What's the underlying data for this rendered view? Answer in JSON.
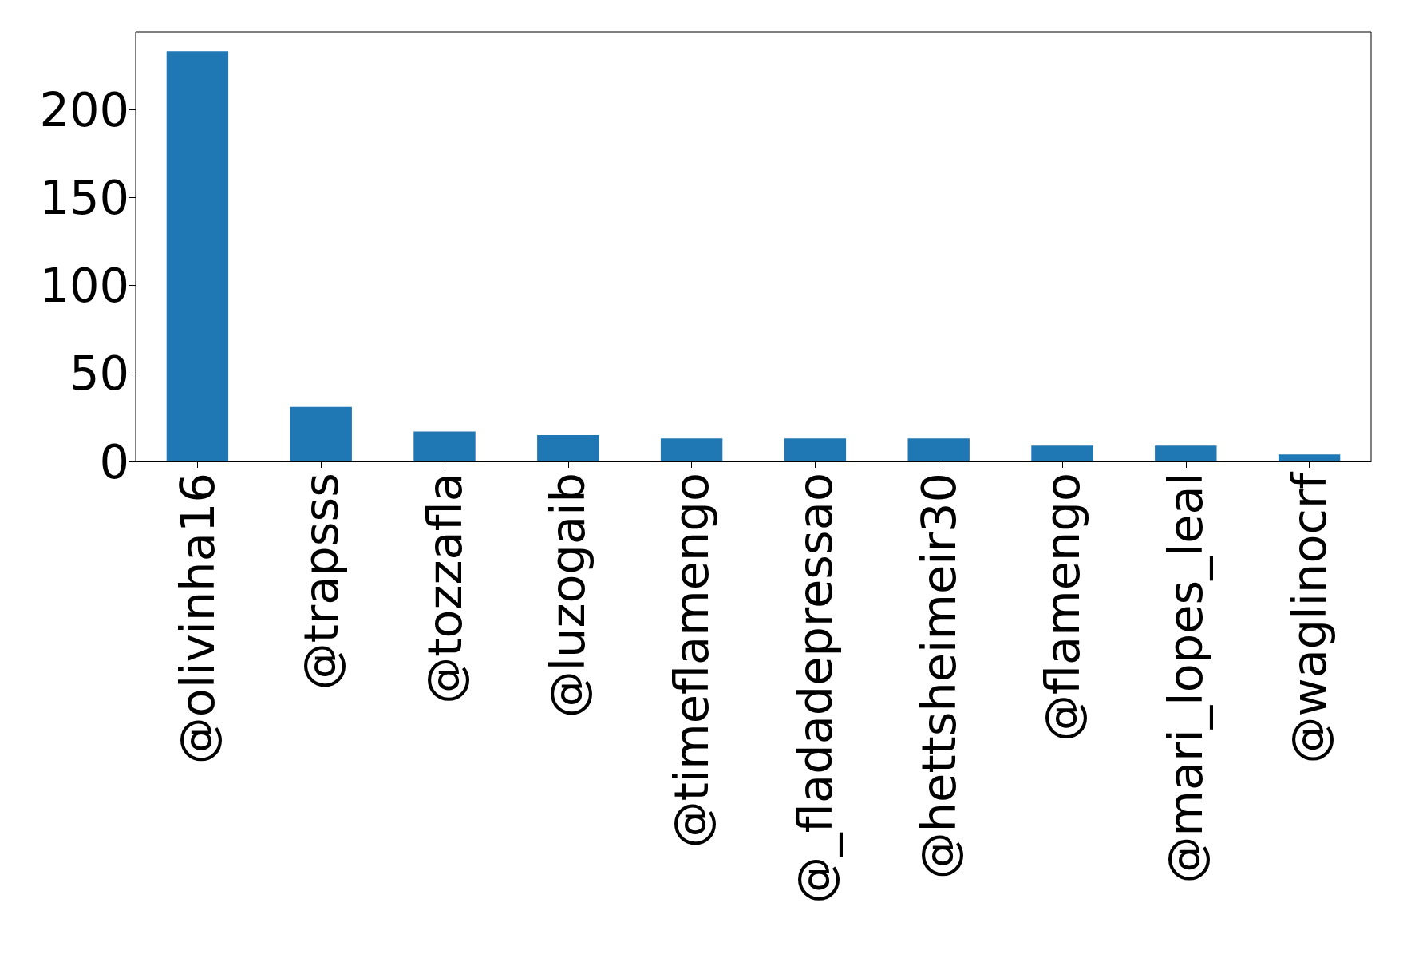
{
  "chart_data": {
    "type": "bar",
    "categories": [
      "@olivinha16",
      "@trapsss",
      "@tozzafla",
      "@luzogaib",
      "@timeflamengo",
      "@_fladadepressao",
      "@hettsheimeir30",
      "@flamengo",
      "@mari_lopes_leal",
      "@waglinocrf"
    ],
    "values": [
      233,
      31,
      17,
      15,
      13,
      13,
      13,
      9,
      9,
      4
    ],
    "color": "#1f77b4",
    "ylim": [
      0,
      244
    ],
    "yticks": [
      0,
      50,
      100,
      150,
      200
    ],
    "grid": false
  }
}
